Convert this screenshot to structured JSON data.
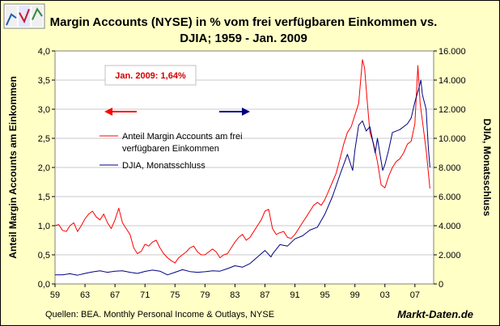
{
  "chart_data": {
    "type": "line",
    "title_line1": "Margin Accounts (NYSE) in % vom frei verfügbaren Einkommen vs.",
    "title_line2": "DJIA; 1959 - Jan. 2009",
    "ylabel_left": "Anteil Margin Accounts am Einkommen",
    "ylabel_right": "DJIA, Monatsschluss",
    "x_range": [
      1959,
      2009.5
    ],
    "x_ticks": [
      "59",
      "63",
      "67",
      "71",
      "75",
      "79",
      "83",
      "87",
      "91",
      "95",
      "99",
      "03",
      "07"
    ],
    "x_tick_values": [
      1959,
      1963,
      1967,
      1971,
      1975,
      1979,
      1983,
      1987,
      1991,
      1995,
      1999,
      2003,
      2007
    ],
    "y_left_range": [
      0,
      4
    ],
    "y_left_ticks": [
      "0,0",
      "0,5",
      "1,0",
      "1,5",
      "2,0",
      "2,5",
      "3,0",
      "3,5",
      "4,0"
    ],
    "y_right_range": [
      0,
      16000
    ],
    "y_right_ticks": [
      "0",
      "2.000",
      "4.000",
      "6.000",
      "8.000",
      "10.000",
      "12.000",
      "14.000",
      "16.000"
    ],
    "annotation": "Jan. 2009: 1,64%",
    "legend": {
      "margin_line1": "Anteil Margin Accounts am frei",
      "margin_line2": "verfügbaren Einkommen",
      "djia": "DJIA, Monatsschluss"
    },
    "series": [
      {
        "name": "Anteil Margin Accounts am frei verfügbaren Einkommen",
        "axis": "left",
        "color": "#ff0000",
        "x": [
          1959.0,
          1959.5,
          1960.0,
          1960.5,
          1961.0,
          1961.5,
          1962.0,
          1962.5,
          1963.0,
          1963.5,
          1964.0,
          1964.5,
          1965.0,
          1965.5,
          1966.0,
          1966.5,
          1967.0,
          1967.5,
          1968.0,
          1968.5,
          1969.0,
          1969.5,
          1970.0,
          1970.5,
          1971.0,
          1971.5,
          1972.0,
          1972.5,
          1973.0,
          1973.5,
          1974.0,
          1974.5,
          1975.0,
          1975.5,
          1976.0,
          1976.5,
          1977.0,
          1977.5,
          1978.0,
          1978.5,
          1979.0,
          1979.5,
          1980.0,
          1980.5,
          1981.0,
          1981.5,
          1982.0,
          1982.5,
          1983.0,
          1983.5,
          1984.0,
          1984.5,
          1985.0,
          1985.5,
          1986.0,
          1986.5,
          1987.0,
          1987.5,
          1988.0,
          1988.5,
          1989.0,
          1989.5,
          1990.0,
          1990.5,
          1991.0,
          1991.5,
          1992.0,
          1992.5,
          1993.0,
          1993.5,
          1994.0,
          1994.5,
          1995.0,
          1995.5,
          1996.0,
          1996.5,
          1997.0,
          1997.5,
          1998.0,
          1998.5,
          1999.0,
          1999.5,
          2000.0,
          2000.3,
          2000.6,
          2001.0,
          2001.5,
          2002.0,
          2002.5,
          2003.0,
          2003.5,
          2004.0,
          2004.5,
          2005.0,
          2005.5,
          2006.0,
          2006.5,
          2007.0,
          2007.4,
          2007.7,
          2008.0,
          2008.5,
          2009.0
        ],
        "values": [
          1.0,
          1.02,
          0.92,
          0.9,
          1.0,
          1.05,
          0.9,
          1.0,
          1.12,
          1.2,
          1.25,
          1.15,
          1.1,
          1.2,
          1.05,
          0.95,
          1.1,
          1.3,
          1.05,
          0.95,
          0.85,
          0.62,
          0.52,
          0.56,
          0.68,
          0.65,
          0.72,
          0.75,
          0.62,
          0.52,
          0.45,
          0.4,
          0.36,
          0.45,
          0.5,
          0.55,
          0.62,
          0.65,
          0.55,
          0.5,
          0.5,
          0.55,
          0.6,
          0.55,
          0.45,
          0.5,
          0.52,
          0.62,
          0.72,
          0.8,
          0.85,
          0.75,
          0.8,
          0.9,
          1.0,
          1.1,
          1.25,
          1.28,
          0.95,
          0.85,
          0.88,
          0.9,
          0.8,
          0.78,
          0.85,
          0.95,
          1.05,
          1.15,
          1.25,
          1.35,
          1.4,
          1.35,
          1.45,
          1.6,
          1.75,
          1.9,
          2.15,
          2.4,
          2.6,
          2.7,
          2.9,
          3.1,
          3.85,
          3.7,
          3.2,
          2.6,
          2.4,
          2.1,
          1.7,
          1.65,
          1.85,
          2.0,
          2.1,
          2.15,
          2.25,
          2.4,
          2.45,
          2.75,
          3.75,
          3.1,
          2.8,
          2.3,
          1.64
        ]
      },
      {
        "name": "DJIA, Monatsschluss",
        "axis": "right",
        "color": "#000080",
        "x": [
          1959.0,
          1960.0,
          1961.0,
          1962.0,
          1963.0,
          1964.0,
          1965.0,
          1966.0,
          1967.0,
          1968.0,
          1969.0,
          1970.0,
          1971.0,
          1972.0,
          1973.0,
          1974.0,
          1975.0,
          1976.0,
          1977.0,
          1978.0,
          1979.0,
          1980.0,
          1981.0,
          1982.0,
          1983.0,
          1984.0,
          1985.0,
          1986.0,
          1987.0,
          1987.8,
          1988.0,
          1989.0,
          1990.0,
          1991.0,
          1992.0,
          1993.0,
          1994.0,
          1995.0,
          1996.0,
          1997.0,
          1998.0,
          1998.7,
          1999.0,
          1999.5,
          2000.0,
          2000.5,
          2001.0,
          2001.7,
          2002.0,
          2002.7,
          2003.0,
          2003.5,
          2004.0,
          2005.0,
          2006.0,
          2006.5,
          2007.0,
          2007.5,
          2007.8,
          2008.0,
          2008.5,
          2008.8,
          2009.0
        ],
        "values": [
          630,
          630,
          700,
          600,
          720,
          830,
          900,
          800,
          880,
          900,
          800,
          720,
          860,
          950,
          880,
          620,
          800,
          980,
          850,
          800,
          840,
          900,
          880,
          1050,
          1250,
          1150,
          1400,
          1850,
          2300,
          1850,
          2050,
          2700,
          2600,
          3100,
          3300,
          3700,
          3900,
          4800,
          6000,
          7500,
          8900,
          7800,
          9200,
          10900,
          11200,
          10500,
          10800,
          9000,
          10000,
          7800,
          8200,
          9200,
          10400,
          10600,
          11000,
          11400,
          12500,
          13400,
          14000,
          13000,
          12000,
          9300,
          8000
        ]
      }
    ]
  },
  "footer": {
    "source": "Quellen: BEA. Monthly Personal Income & Outlays, NYSE",
    "brand": "Markt-Daten.de"
  },
  "logo": {
    "series": [
      [
        0.0,
        0.6,
        0.4
      ],
      [
        0.7,
        0.2,
        0.9
      ],
      [
        0.3,
        0.9,
        0.5
      ]
    ]
  }
}
